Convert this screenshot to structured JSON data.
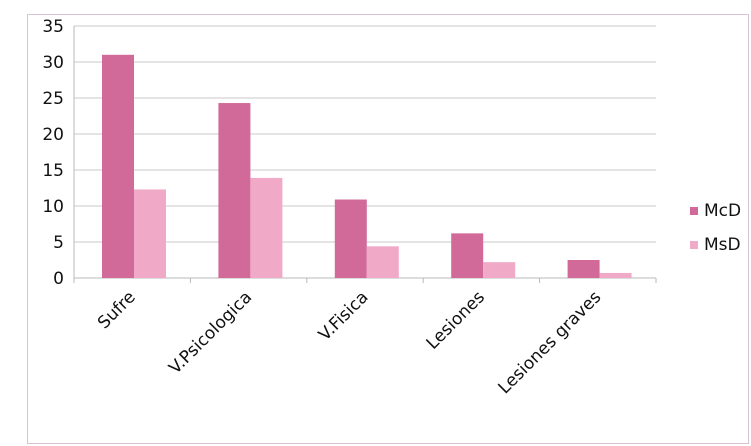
{
  "chart_data": {
    "type": "bar",
    "categories": [
      "Sufre",
      "V.Psicologica",
      "V.Fisica",
      "Lesiones",
      "Lesiones graves"
    ],
    "series": [
      {
        "name": "McD",
        "color": "#d26a99",
        "values": [
          31,
          24.3,
          10.9,
          6.2,
          2.5
        ]
      },
      {
        "name": "MsD",
        "color": "#f0aac7",
        "values": [
          12.3,
          13.9,
          4.4,
          2.2,
          0.7
        ]
      }
    ],
    "title": "",
    "xlabel": "",
    "ylabel": "",
    "ylim": [
      0,
      35
    ],
    "yticks": [
      "0",
      "5",
      "10",
      "15",
      "20",
      "25",
      "30",
      "35"
    ],
    "grid": true,
    "legend_position": "right"
  }
}
